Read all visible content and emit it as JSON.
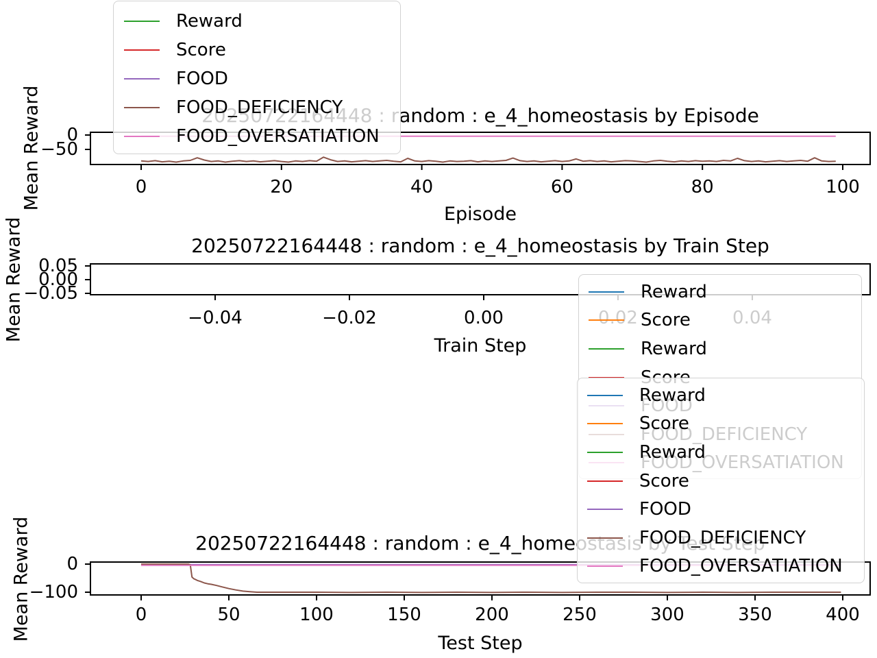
{
  "figure": {
    "background": "#ffffff"
  },
  "palette": {
    "blue": "#1f77b4",
    "orange": "#ff7f0e",
    "green": "#2ca02c",
    "red": "#d62728",
    "purple": "#9467bd",
    "brown": "#8c564b",
    "pink": "#e377c2",
    "axes": "#000000"
  },
  "chart_data": [
    {
      "type": "line",
      "title": "20250722164448 : random : e_4_homeostasis by Episode",
      "xlabel": "Episode",
      "ylabel": "Mean Reward",
      "xlim": [
        -7,
        107
      ],
      "ylim": [
        -102,
        9.5
      ],
      "grid": false,
      "x_ticks": [
        {
          "v": 0,
          "label": "0"
        },
        {
          "v": 20,
          "label": "20"
        },
        {
          "v": 40,
          "label": "40"
        },
        {
          "v": 60,
          "label": "60"
        },
        {
          "v": 80,
          "label": "80"
        },
        {
          "v": 100,
          "label": "100"
        }
      ],
      "y_ticks": [
        {
          "v": 0,
          "label": "0"
        },
        {
          "v": -50,
          "label": "−50"
        }
      ],
      "series": [
        {
          "name": "Reward",
          "color": "#2ca02c",
          "render": "overlapped"
        },
        {
          "name": "Score",
          "color": "#d62728",
          "render": "overlapped"
        },
        {
          "name": "FOOD",
          "color": "#9467bd",
          "render": "overlapped"
        },
        {
          "name": "FOOD_DEFICIENCY",
          "color": "#8c564b",
          "render": "values",
          "x_start": 0,
          "x_step": 1,
          "values": [
            -90,
            -92,
            -89,
            -93,
            -91,
            -94,
            -90,
            -88,
            -79,
            -87,
            -92,
            -90,
            -94,
            -91,
            -89,
            -92,
            -90,
            -93,
            -91,
            -89,
            -92,
            -94,
            -90,
            -92,
            -89,
            -91,
            -77,
            -86,
            -92,
            -90,
            -93,
            -91,
            -89,
            -92,
            -90,
            -88,
            -91,
            -93,
            -81,
            -90,
            -92,
            -89,
            -91,
            -94,
            -90,
            -92,
            -91,
            -89,
            -93,
            -90,
            -92,
            -90,
            -88,
            -80,
            -89,
            -92,
            -90,
            -93,
            -91,
            -89,
            -92,
            -90,
            -83,
            -91,
            -89,
            -92,
            -90,
            -93,
            -91,
            -89,
            -90,
            -92,
            -94,
            -90,
            -88,
            -91,
            -93,
            -90,
            -92,
            -89,
            -91,
            -90,
            -92,
            -88,
            -90,
            -81,
            -89,
            -92,
            -90,
            -93,
            -91,
            -89,
            -92,
            -90,
            -88,
            -91,
            -79,
            -90,
            -92,
            -91
          ]
        },
        {
          "name": "FOOD_OVERSATIATION",
          "color": "#e377c2",
          "render": "constant",
          "value": -4,
          "x_range": [
            0,
            99
          ]
        }
      ]
    },
    {
      "type": "line",
      "title": "20250722164448 : random : e_4_homeostasis by Train Step",
      "xlabel": "Train Step",
      "ylabel": "Mean Reward",
      "xlim": [
        -0.058,
        0.058
      ],
      "ylim": [
        -0.055,
        0.055
      ],
      "grid": false,
      "x_ticks": [
        {
          "v": -0.04,
          "label": "−0.04"
        },
        {
          "v": -0.02,
          "label": "−0.02"
        },
        {
          "v": 0,
          "label": "0.00"
        },
        {
          "v": 0.02,
          "label": "0.02"
        },
        {
          "v": 0.04,
          "label": "0.04"
        }
      ],
      "y_ticks": [
        {
          "v": 0.05,
          "label": "0.05"
        },
        {
          "v": 0,
          "label": "0.00"
        },
        {
          "v": -0.05,
          "label": "−0.05"
        }
      ],
      "series": []
    },
    {
      "type": "line",
      "title": "20250722164448 : random : e_4_homeostasis by Test Step",
      "xlabel": "Test Step",
      "ylabel": "Mean Reward",
      "xlim": [
        -10,
        410
      ],
      "ylim": [
        -110,
        7
      ],
      "grid": false,
      "x_ticks": [
        {
          "v": 0,
          "label": "0"
        },
        {
          "v": 50,
          "label": "50"
        },
        {
          "v": 100,
          "label": "100"
        },
        {
          "v": 150,
          "label": "150"
        },
        {
          "v": 200,
          "label": "200"
        },
        {
          "v": 250,
          "label": "250"
        },
        {
          "v": 300,
          "label": "300"
        },
        {
          "v": 350,
          "label": "350"
        },
        {
          "v": 400,
          "label": "400"
        }
      ],
      "y_ticks": [
        {
          "v": 0,
          "label": "0"
        },
        {
          "v": -100,
          "label": "−100"
        }
      ],
      "series": [
        {
          "name": "Reward",
          "color": "#1f77b4",
          "render": "overlapped"
        },
        {
          "name": "Score",
          "color": "#ff7f0e",
          "render": "overlapped"
        },
        {
          "name": "Reward",
          "color": "#2ca02c",
          "render": "overlapped"
        },
        {
          "name": "Score",
          "color": "#d62728",
          "render": "overlapped"
        },
        {
          "name": "FOOD",
          "color": "#9467bd",
          "render": "constant",
          "value": -1.8,
          "x_range": [
            0,
            399
          ]
        },
        {
          "name": "FOOD_DEFICIENCY",
          "color": "#8c564b",
          "render": "points",
          "points": [
            [
              0,
              0
            ],
            [
              5,
              0
            ],
            [
              10,
              0
            ],
            [
              15,
              0
            ],
            [
              20,
              0
            ],
            [
              25,
              0
            ],
            [
              27,
              0
            ],
            [
              28,
              -2
            ],
            [
              29,
              -46
            ],
            [
              30,
              -52
            ],
            [
              31,
              -55
            ],
            [
              32,
              -58
            ],
            [
              34,
              -62
            ],
            [
              36,
              -67
            ],
            [
              38,
              -70
            ],
            [
              40,
              -72
            ],
            [
              43,
              -76
            ],
            [
              46,
              -81
            ],
            [
              50,
              -87
            ],
            [
              54,
              -92
            ],
            [
              58,
              -96
            ],
            [
              62,
              -98
            ],
            [
              66,
              -100
            ],
            [
              80,
              -100
            ],
            [
              100,
              -100
            ],
            [
              120,
              -101
            ],
            [
              140,
              -100
            ],
            [
              160,
              -101
            ],
            [
              180,
              -100
            ],
            [
              200,
              -101
            ],
            [
              220,
              -100
            ],
            [
              240,
              -101
            ],
            [
              260,
              -100
            ],
            [
              280,
              -100
            ],
            [
              300,
              -101
            ],
            [
              320,
              -100
            ],
            [
              340,
              -101
            ],
            [
              360,
              -100
            ],
            [
              380,
              -100
            ],
            [
              399,
              -100
            ]
          ]
        },
        {
          "name": "FOOD_OVERSATIATION",
          "color": "#e377c2",
          "render": "constant",
          "value": -4.2,
          "x_range": [
            0,
            399
          ]
        }
      ]
    }
  ],
  "legends": [
    {
      "id": "legend-episode",
      "entries": [
        {
          "label": "Reward",
          "color": "#2ca02c"
        },
        {
          "label": "Score",
          "color": "#d62728"
        },
        {
          "label": "FOOD",
          "color": "#9467bd"
        },
        {
          "label": "FOOD_DEFICIENCY",
          "color": "#8c564b"
        },
        {
          "label": "FOOD_OVERSATIATION",
          "color": "#e377c2"
        }
      ]
    },
    {
      "id": "legend-train",
      "entries": [
        {
          "label": "Reward",
          "color": "#1f77b4"
        },
        {
          "label": "Score",
          "color": "#ff7f0e"
        },
        {
          "label": "Reward",
          "color": "#2ca02c"
        },
        {
          "label": "Score",
          "color": "#d62728"
        },
        {
          "label": "FOOD",
          "color": "#9467bd"
        },
        {
          "label": "FOOD_DEFICIENCY",
          "color": "#8c564b"
        },
        {
          "label": "FOOD_OVERSATIATION",
          "color": "#e377c2"
        }
      ]
    },
    {
      "id": "legend-test",
      "entries": [
        {
          "label": "Reward",
          "color": "#1f77b4"
        },
        {
          "label": "Score",
          "color": "#ff7f0e"
        },
        {
          "label": "Reward",
          "color": "#2ca02c"
        },
        {
          "label": "Score",
          "color": "#d62728"
        },
        {
          "label": "FOOD",
          "color": "#9467bd"
        },
        {
          "label": "FOOD_DEFICIENCY",
          "color": "#8c564b"
        },
        {
          "label": "FOOD_OVERSATIATION",
          "color": "#e377c2"
        }
      ]
    }
  ]
}
